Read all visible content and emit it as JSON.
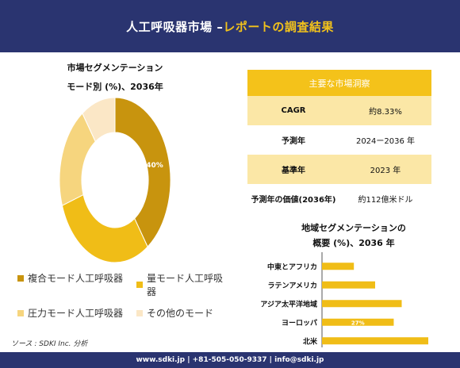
{
  "header": {
    "title_main": "人工呼吸器市場 –",
    "title_accent": "レポートの調査結果"
  },
  "donut_title": {
    "line1": "市場セグメンテーション",
    "line2": "モード別 (%)、2036年"
  },
  "legend": [
    {
      "label": "複合モード人工呼吸器",
      "color": "#c8940e"
    },
    {
      "label": "量モード人工呼吸器",
      "color": "#f0bd17"
    },
    {
      "label": "圧力モード人工呼吸器",
      "color": "#f6d57e"
    },
    {
      "label": "その他のモード",
      "color": "#fbe7c6"
    }
  ],
  "panel": {
    "title": "主要な市場洞察",
    "rows": [
      {
        "label": "CAGR",
        "value": "約8.33%"
      },
      {
        "label": "予測年",
        "value": "2024ー2036 年"
      },
      {
        "label": "基準年",
        "value": "2023 年"
      },
      {
        "label": "予測年の価値(2036年)",
        "value": "約112億米ドル"
      }
    ]
  },
  "bar_title": {
    "line1": "地域セグメンテーションの",
    "line2": "概要 (%)、2036 年"
  },
  "source": "ソース : SDKI Inc. 分析",
  "footer": "www.sdki.jp | +81-505-050-9337 | info@sdki.jp",
  "chart_data": [
    {
      "type": "pie",
      "title": "市場セグメンテーション モード別 (%)、2036年",
      "categories": [
        "複合モード人工呼吸器",
        "量モード人工呼吸器",
        "圧力モード人工呼吸器",
        "その他のモード"
      ],
      "values": [
        40,
        30,
        20,
        10
      ],
      "data_labels": [
        "40%",
        "",
        "",
        ""
      ],
      "colors": [
        "#c8940e",
        "#f0bd17",
        "#f6d57e",
        "#fbe7c6"
      ]
    },
    {
      "type": "bar",
      "orientation": "horizontal",
      "title": "地域セグメンテーションの 概要 (%)、2036 年",
      "categories": [
        "中東とアフリカ",
        "ラテンアメリカ",
        "アジア太平洋地域",
        "ヨーロッパ",
        "北米"
      ],
      "values": [
        12,
        20,
        30,
        27,
        40
      ],
      "data_labels": [
        "",
        "",
        "",
        "27%",
        ""
      ],
      "xlim": [
        0,
        40
      ],
      "color": "#f0bd17"
    }
  ]
}
